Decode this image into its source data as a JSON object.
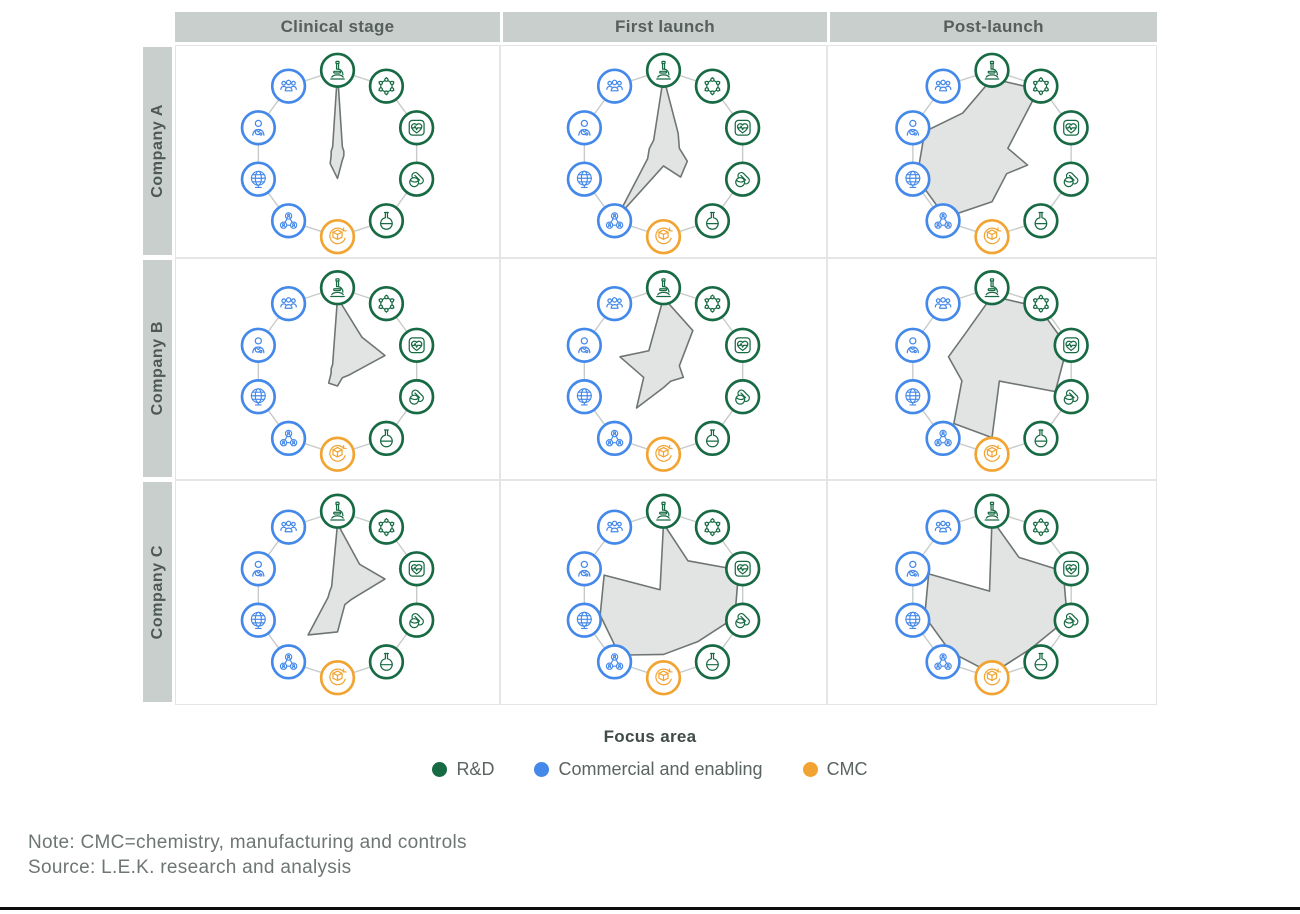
{
  "colors": {
    "rnd_green": "#176A43",
    "commercial_blue": "#4489EA",
    "cmc_orange": "#F2A432",
    "shape_fill": "#E2E4E3",
    "shape_stroke": "#6E7572",
    "connector": "#C6CBC9",
    "header_bg": "#C9CFCD",
    "bottom_bar": "#0D0D0D"
  },
  "legend": {
    "title": "Focus area",
    "items": [
      {
        "label": "R&D",
        "color_key": "rnd_green"
      },
      {
        "label": "Commercial and enabling",
        "color_key": "commercial_blue"
      },
      {
        "label": "CMC",
        "color_key": "cmc_orange"
      }
    ]
  },
  "footer": {
    "note": "Note: CMC=chemistry, manufacturing and controls",
    "source": "Source: L.E.K. research and analysis"
  },
  "chart_data": {
    "type": "radar",
    "columns": [
      "Clinical stage",
      "First launch",
      "Post-launch"
    ],
    "rows": [
      "Company A",
      "Company B",
      "Company C"
    ],
    "scale": [
      0,
      1
    ],
    "axes": [
      {
        "icon": "microscope",
        "group": "R&D"
      },
      {
        "icon": "molecule",
        "group": "R&D"
      },
      {
        "icon": "heart-monitor",
        "group": "R&D"
      },
      {
        "icon": "pills",
        "group": "R&D"
      },
      {
        "icon": "flask",
        "group": "R&D"
      },
      {
        "icon": "package",
        "group": "CMC"
      },
      {
        "icon": "people-network",
        "group": "Commercial and enabling"
      },
      {
        "icon": "globe",
        "group": "Commercial and enabling"
      },
      {
        "icon": "doctor",
        "group": "Commercial and enabling"
      },
      {
        "icon": "team",
        "group": "Commercial and enabling"
      }
    ],
    "series": [
      {
        "row": "Company A",
        "col": "Clinical stage",
        "values": [
          0.97,
          0.1,
          0.08,
          0.08,
          0.1,
          0.3,
          0.15,
          0.08,
          0.08,
          0.1
        ]
      },
      {
        "row": "Company A",
        "col": "First launch",
        "values": [
          0.92,
          0.3,
          0.2,
          0.3,
          0.35,
          0.15,
          0.95,
          0.2,
          0.18,
          0.2
        ]
      },
      {
        "row": "Company A",
        "col": "Post-launch",
        "values": [
          0.9,
          0.95,
          0.2,
          0.45,
          0.3,
          0.58,
          0.95,
          0.95,
          0.85,
          0.6
        ]
      },
      {
        "row": "Company B",
        "col": "Clinical stage",
        "values": [
          0.88,
          0.5,
          0.6,
          0.15,
          0.1,
          0.18,
          0.18,
          0.08,
          0.08,
          0.1
        ]
      },
      {
        "row": "Company B",
        "col": "First launch",
        "values": [
          0.88,
          0.6,
          0.2,
          0.25,
          0.15,
          0.2,
          0.55,
          0.25,
          0.55,
          0.3
        ]
      },
      {
        "row": "Company B",
        "col": "Post-launch",
        "values": [
          0.9,
          0.95,
          0.95,
          0.8,
          0.15,
          0.8,
          0.78,
          0.38,
          0.55,
          0.55
        ]
      },
      {
        "row": "Company C",
        "col": "Clinical stage",
        "values": [
          0.85,
          0.45,
          0.6,
          0.18,
          0.15,
          0.45,
          0.6,
          0.12,
          0.1,
          0.12
        ]
      },
      {
        "row": "Company C",
        "col": "First launch",
        "values": [
          0.85,
          0.5,
          0.95,
          0.9,
          0.7,
          0.72,
          0.9,
          0.8,
          0.75,
          0.07
        ]
      },
      {
        "row": "Company C",
        "col": "Post-launch",
        "values": [
          0.9,
          0.55,
          0.9,
          0.95,
          0.8,
          0.95,
          0.85,
          0.85,
          0.8,
          0.05
        ]
      }
    ]
  }
}
